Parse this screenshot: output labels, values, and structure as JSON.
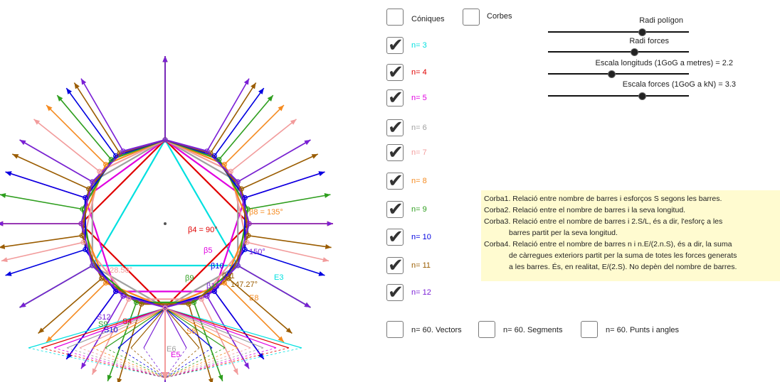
{
  "top_checkboxes": [
    {
      "label": "Cóniques",
      "checked": false
    },
    {
      "label": "Corbes",
      "checked": false
    }
  ],
  "n_checkboxes": [
    {
      "label": "n= 3",
      "checked": true,
      "color": "#00e0e0"
    },
    {
      "label": "n= 4",
      "checked": true,
      "color": "#e00000"
    },
    {
      "label": "n= 5",
      "checked": true,
      "color": "#e000e0"
    },
    {
      "label": "n= 6",
      "checked": true,
      "color": "#a0a0a0"
    },
    {
      "label": "n= 7",
      "checked": true,
      "color": "#f29c9c"
    },
    {
      "label": "n= 8",
      "checked": true,
      "color": "#f58a1f"
    },
    {
      "label": "n= 9",
      "checked": true,
      "color": "#2e9e1e"
    },
    {
      "label": "n= 10",
      "checked": true,
      "color": "#0000e0"
    },
    {
      "label": "n= 11",
      "checked": true,
      "color": "#9a5c00"
    },
    {
      "label": "n= 12",
      "checked": true,
      "color": "#7a1fd6"
    }
  ],
  "bottom_checkboxes": [
    {
      "label": "n= 60. Vectors",
      "checked": false
    },
    {
      "label": "n= 60. Segments",
      "checked": false
    },
    {
      "label": "n= 60. Punts i angles",
      "checked": false
    }
  ],
  "sliders": [
    {
      "label": "Radi polígon",
      "value": 0.67
    },
    {
      "label": "Radi forces",
      "value": 0.5
    },
    {
      "label": "Escala longituds (1GoG a metres) = 2.2",
      "value": 0.45
    },
    {
      "label": "Escala forces (1GoG a kN) = 3.3",
      "value": 0.67
    }
  ],
  "notes": [
    {
      "text": "Corba1. Relació entre nombre de barres i esforços S segons les barres.",
      "indent": false
    },
    {
      "text": "Corba2. Relació entre el nombre de barres i la seva longitud.",
      "indent": false
    },
    {
      "text": "Corba3. Relació entre el nombre de barres i 2.S/L, és a dir, l'esforç a les",
      "indent": false
    },
    {
      "text": "barres partit per la seva longitud.",
      "indent": true
    },
    {
      "text": "Corba4. Relació entre el nombre de barres n i n.E/(2.n.S), és a dir, la suma",
      "indent": false
    },
    {
      "text": "de càrregues exteriors partit per la suma de totes les forces generats",
      "indent": true
    },
    {
      "text": "a les barres. És, en realitat, E/(2.S). No depèn del nombre de barres.",
      "indent": true
    }
  ],
  "drawing_labels": [
    {
      "text": "β8 = 135°",
      "color": "#f58a1f"
    },
    {
      "text": "β4 = 90°",
      "color": "#e00000"
    },
    {
      "text": "β5",
      "color": "#e000e0"
    },
    {
      "text": "β9",
      "color": "#2e9e1e"
    },
    {
      "text": "β10",
      "color": "#0000e0"
    },
    {
      "text": "β12",
      "color": "#7a1fd6"
    },
    {
      "text": "β11",
      "color": "#9a5c00"
    },
    {
      "text": "147.27°",
      "color": "#9a5c00"
    },
    {
      "text": "150°",
      "color": "#7a1fd6"
    },
    {
      "text": "128.58°",
      "color": "#f29c9c"
    },
    {
      "text": "E3",
      "color": "#00e0e0"
    },
    {
      "text": "E8",
      "color": "#f58a1f"
    },
    {
      "text": "E5",
      "color": "#e000e0"
    },
    {
      "text": "E6",
      "color": "#a0a0a0"
    },
    {
      "text": "S8",
      "color": "#f58a1f"
    },
    {
      "text": "S4",
      "color": "#e00000"
    },
    {
      "text": "S12",
      "color": "#7a1fd6"
    },
    {
      "text": "S9",
      "color": "#2e9e1e"
    },
    {
      "text": "S10",
      "color": "#0000e0"
    }
  ]
}
